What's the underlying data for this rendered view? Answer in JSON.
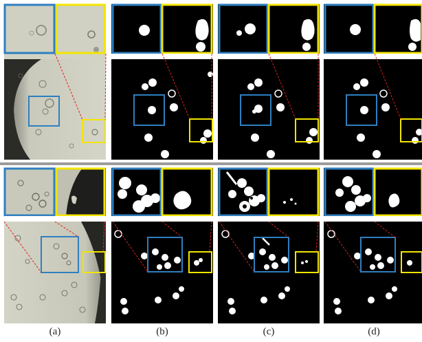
{
  "captions": [
    "(a)",
    "(b)",
    "(c)",
    "(d)"
  ],
  "colors": {
    "zoom_box_blue": "#2f7fc0",
    "zoom_box_yellow": "#f2e500",
    "connector_red": "#e0201a",
    "mask_background": "#000000",
    "mask_foreground": "#ffffff",
    "micrograph_background": "#cfd0c2"
  }
}
